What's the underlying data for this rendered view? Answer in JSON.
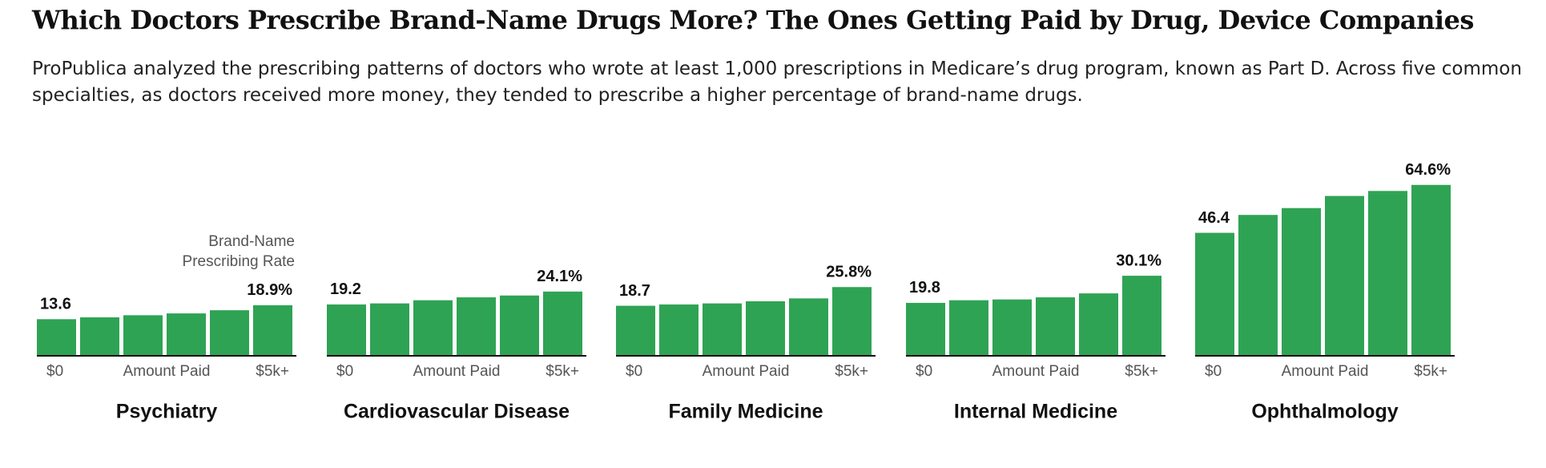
{
  "title": "Which Doctors Prescribe Brand-Name Drugs More? The Ones Getting Paid by Drug, Device Companies",
  "subtitle": "ProPublica analyzed the prescribing patterns of doctors who wrote at least 1,000 prescriptions in Medicare’s drug program, known as Part D. Across five common specialties, as doctors received more money, they tended to prescribe a higher percentage of brand-name drugs.",
  "chart_data": [
    {
      "type": "bar",
      "title": "Psychiatry",
      "x_label": "Amount Paid",
      "annotation": [
        "Brand-Name",
        "Prescribing Rate"
      ],
      "categories": [
        "$0",
        null,
        null,
        null,
        null,
        "$5k+"
      ],
      "values": [
        13.6,
        14.3,
        15.1,
        15.8,
        17.0,
        18.9
      ],
      "value_labels": [
        "13.6",
        null,
        null,
        null,
        null,
        "18.9%"
      ],
      "color": "#2fa354",
      "ylim": [
        0,
        70
      ]
    },
    {
      "type": "bar",
      "title": "Cardiovascular Disease",
      "x_label": "Amount Paid",
      "categories": [
        "$0",
        null,
        null,
        null,
        null,
        "$5k+"
      ],
      "values": [
        19.2,
        19.6,
        20.8,
        21.9,
        22.6,
        24.1
      ],
      "value_labels": [
        "19.2",
        null,
        null,
        null,
        null,
        "24.1%"
      ],
      "color": "#2fa354",
      "ylim": [
        0,
        70
      ]
    },
    {
      "type": "bar",
      "title": "Family Medicine",
      "x_label": "Amount Paid",
      "categories": [
        "$0",
        null,
        null,
        null,
        null,
        "$5k+"
      ],
      "values": [
        18.7,
        19.2,
        19.6,
        20.4,
        21.5,
        25.8
      ],
      "value_labels": [
        "18.7",
        null,
        null,
        null,
        null,
        "25.8%"
      ],
      "color": "#2fa354",
      "ylim": [
        0,
        70
      ]
    },
    {
      "type": "bar",
      "title": "Internal Medicine",
      "x_label": "Amount Paid",
      "categories": [
        "$0",
        null,
        null,
        null,
        null,
        "$5k+"
      ],
      "values": [
        19.8,
        20.8,
        21.1,
        21.9,
        23.4,
        30.1
      ],
      "value_labels": [
        "19.8",
        null,
        null,
        null,
        null,
        "30.1%"
      ],
      "color": "#2fa354",
      "ylim": [
        0,
        70
      ]
    },
    {
      "type": "bar",
      "title": "Ophthalmology",
      "x_label": "Amount Paid",
      "categories": [
        "$0",
        null,
        null,
        null,
        null,
        "$5k+"
      ],
      "values": [
        46.4,
        53.2,
        55.8,
        60.4,
        62.3,
        64.6
      ],
      "value_labels": [
        "46.4",
        null,
        null,
        null,
        null,
        "64.6%"
      ],
      "color": "#2fa354",
      "ylim": [
        0,
        70
      ]
    }
  ]
}
